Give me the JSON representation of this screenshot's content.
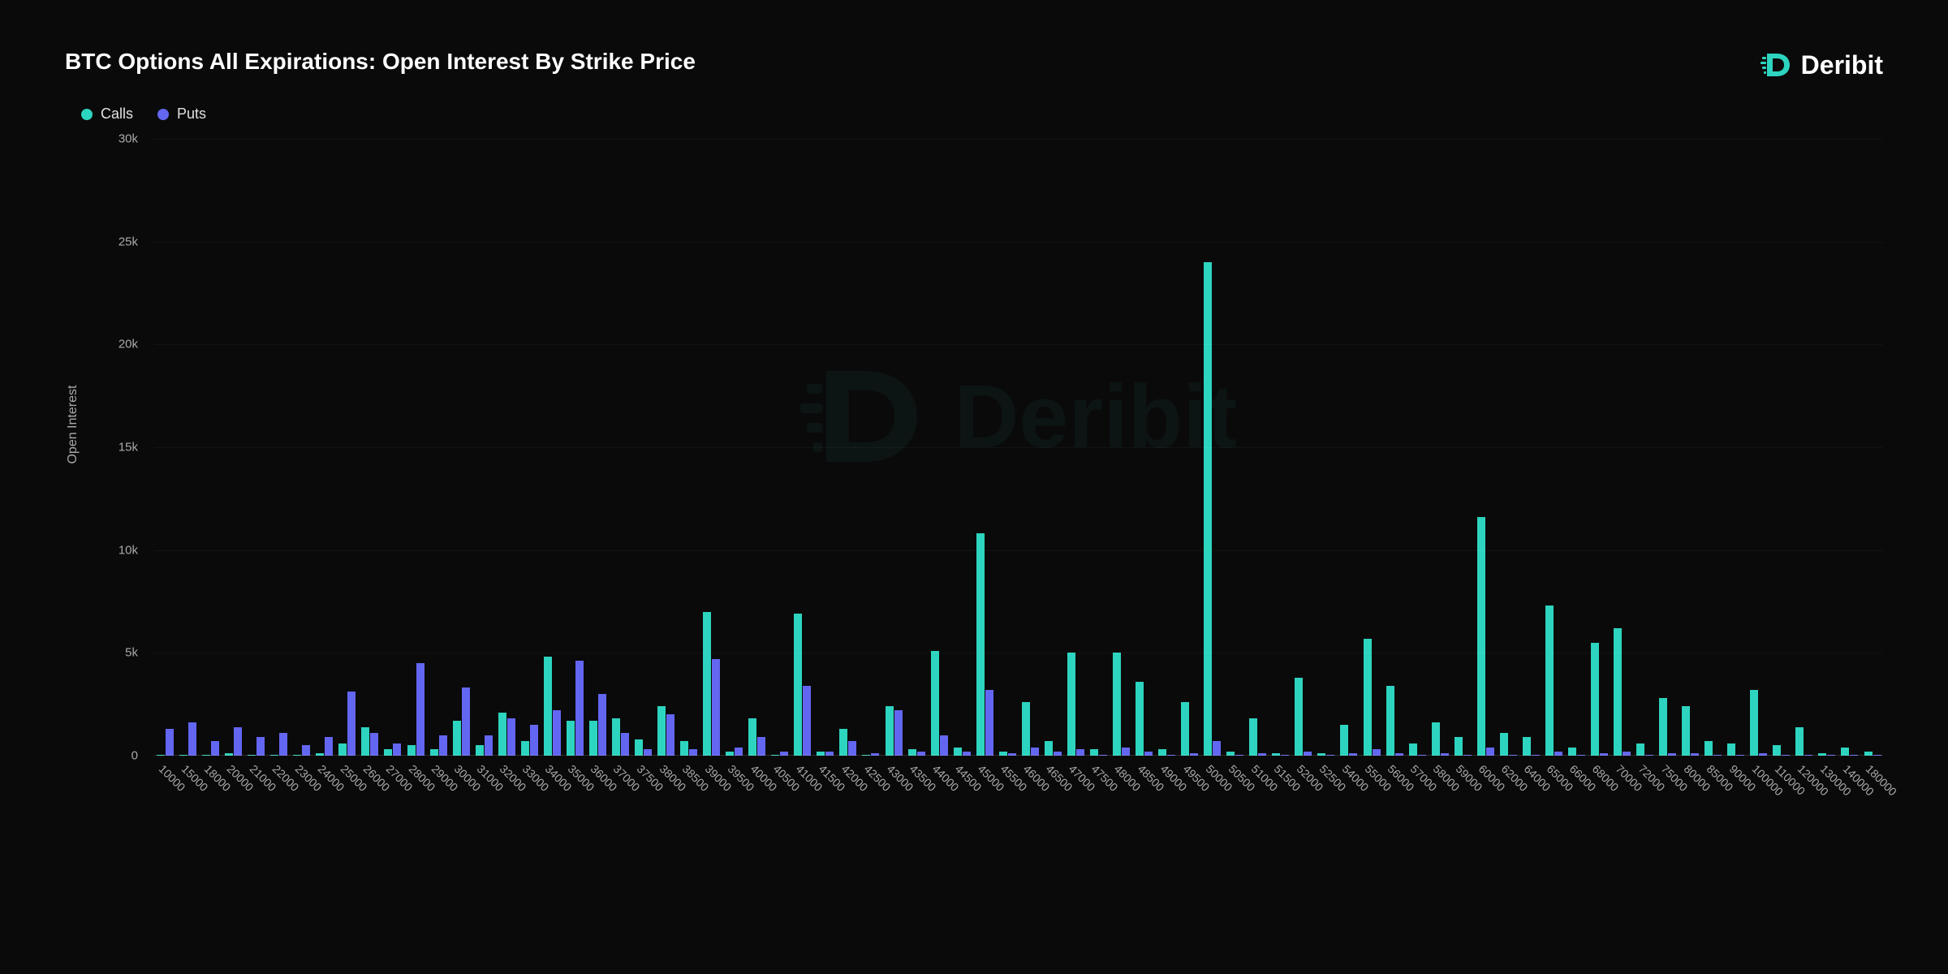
{
  "title": "BTC Options All Expirations: Open Interest By Strike Price",
  "brand": "Deribit",
  "legend": {
    "calls": {
      "label": "Calls",
      "color": "#2dd4bf"
    },
    "puts": {
      "label": "Puts",
      "color": "#6366f1"
    }
  },
  "chart": {
    "type": "grouped-bar",
    "background_color": "#0a0a0a",
    "grid_color": "rgba(255,255,255,0.04)",
    "text_color": "#aaaaaa",
    "ylabel": "Open Interest",
    "ylim": [
      0,
      30000
    ],
    "ytick_step": 5000,
    "yticks": [
      {
        "v": 0,
        "label": "0"
      },
      {
        "v": 5000,
        "label": "5k"
      },
      {
        "v": 10000,
        "label": "10k"
      },
      {
        "v": 15000,
        "label": "15k"
      },
      {
        "v": 20000,
        "label": "20k"
      },
      {
        "v": 25000,
        "label": "25k"
      },
      {
        "v": 30000,
        "label": "30k"
      }
    ],
    "series_colors": {
      "calls": "#2dd4bf",
      "puts": "#6366f1"
    },
    "bar_width_pct": 45,
    "title_fontsize": 28,
    "label_fontsize": 16,
    "tick_fontsize": 15,
    "data": [
      {
        "strike": "10000",
        "calls": 50,
        "puts": 1300,
        "show": true
      },
      {
        "strike": "15000",
        "calls": 50,
        "puts": 1600,
        "show": true
      },
      {
        "strike": "18000",
        "calls": 50,
        "puts": 700,
        "show": true
      },
      {
        "strike": "20000",
        "calls": 100,
        "puts": 1400,
        "show": true
      },
      {
        "strike": "21000",
        "calls": 50,
        "puts": 900,
        "show": false
      },
      {
        "strike": "22000",
        "calls": 50,
        "puts": 1100,
        "show": true
      },
      {
        "strike": "23000",
        "calls": 50,
        "puts": 500,
        "show": false
      },
      {
        "strike": "24000",
        "calls": 100,
        "puts": 900,
        "show": true
      },
      {
        "strike": "25000",
        "calls": 600,
        "puts": 3100,
        "show": false
      },
      {
        "strike": "26000",
        "calls": 1400,
        "puts": 1100,
        "show": true
      },
      {
        "strike": "27000",
        "calls": 300,
        "puts": 600,
        "show": false
      },
      {
        "strike": "28000",
        "calls": 500,
        "puts": 4500,
        "show": true
      },
      {
        "strike": "29000",
        "calls": 300,
        "puts": 1000,
        "show": false
      },
      {
        "strike": "30000",
        "calls": 1700,
        "puts": 3300,
        "show": true
      },
      {
        "strike": "31000",
        "calls": 500,
        "puts": 1000,
        "show": false
      },
      {
        "strike": "32000",
        "calls": 2100,
        "puts": 1800,
        "show": true
      },
      {
        "strike": "33000",
        "calls": 700,
        "puts": 1500,
        "show": false
      },
      {
        "strike": "34000",
        "calls": 4800,
        "puts": 2200,
        "show": true
      },
      {
        "strike": "35000",
        "calls": 1700,
        "puts": 4600,
        "show": false
      },
      {
        "strike": "36000",
        "calls": 1700,
        "puts": 3000,
        "show": true
      },
      {
        "strike": "37000",
        "calls": 1800,
        "puts": 1100,
        "show": false
      },
      {
        "strike": "37500",
        "calls": 800,
        "puts": 300,
        "show": true
      },
      {
        "strike": "38000",
        "calls": 2400,
        "puts": 2000,
        "show": false
      },
      {
        "strike": "38500",
        "calls": 700,
        "puts": 300,
        "show": true
      },
      {
        "strike": "39000",
        "calls": 7000,
        "puts": 4700,
        "show": false
      },
      {
        "strike": "39500",
        "calls": 200,
        "puts": 400,
        "show": true
      },
      {
        "strike": "40000",
        "calls": 1800,
        "puts": 900,
        "show": false
      },
      {
        "strike": "40500",
        "calls": 50,
        "puts": 200,
        "show": true
      },
      {
        "strike": "41000",
        "calls": 6900,
        "puts": 3400,
        "show": false
      },
      {
        "strike": "41500",
        "calls": 200,
        "puts": 200,
        "show": true
      },
      {
        "strike": "42000",
        "calls": 1300,
        "puts": 700,
        "show": false
      },
      {
        "strike": "42500",
        "calls": 50,
        "puts": 100,
        "show": true
      },
      {
        "strike": "43000",
        "calls": 2400,
        "puts": 2200,
        "show": false
      },
      {
        "strike": "43500",
        "calls": 300,
        "puts": 200,
        "show": true
      },
      {
        "strike": "44000",
        "calls": 5100,
        "puts": 1000,
        "show": false
      },
      {
        "strike": "44500",
        "calls": 400,
        "puts": 200,
        "show": true
      },
      {
        "strike": "45000",
        "calls": 10800,
        "puts": 3200,
        "show": false
      },
      {
        "strike": "45500",
        "calls": 200,
        "puts": 100,
        "show": true
      },
      {
        "strike": "46000",
        "calls": 2600,
        "puts": 400,
        "show": false
      },
      {
        "strike": "46500",
        "calls": 700,
        "puts": 200,
        "show": true
      },
      {
        "strike": "47000",
        "calls": 5000,
        "puts": 300,
        "show": false
      },
      {
        "strike": "47500",
        "calls": 300,
        "puts": 50,
        "show": true
      },
      {
        "strike": "48000",
        "calls": 5000,
        "puts": 400,
        "show": false
      },
      {
        "strike": "48500",
        "calls": 3600,
        "puts": 200,
        "show": true
      },
      {
        "strike": "49000",
        "calls": 300,
        "puts": 50,
        "show": false
      },
      {
        "strike": "49500",
        "calls": 2600,
        "puts": 100,
        "show": true
      },
      {
        "strike": "50000",
        "calls": 24000,
        "puts": 700,
        "show": false
      },
      {
        "strike": "50500",
        "calls": 200,
        "puts": 50,
        "show": true
      },
      {
        "strike": "51000",
        "calls": 1800,
        "puts": 100,
        "show": false
      },
      {
        "strike": "51500",
        "calls": 100,
        "puts": 50,
        "show": true
      },
      {
        "strike": "52000",
        "calls": 3800,
        "puts": 200,
        "show": false
      },
      {
        "strike": "52500",
        "calls": 100,
        "puts": 50,
        "show": true
      },
      {
        "strike": "54000",
        "calls": 1500,
        "puts": 100,
        "show": false
      },
      {
        "strike": "55000",
        "calls": 5700,
        "puts": 300,
        "show": true
      },
      {
        "strike": "56000",
        "calls": 3400,
        "puts": 100,
        "show": false
      },
      {
        "strike": "57000",
        "calls": 600,
        "puts": 50,
        "show": true
      },
      {
        "strike": "58000",
        "calls": 1600,
        "puts": 100,
        "show": false
      },
      {
        "strike": "59000",
        "calls": 900,
        "puts": 50,
        "show": true
      },
      {
        "strike": "60000",
        "calls": 11600,
        "puts": 400,
        "show": false
      },
      {
        "strike": "62000",
        "calls": 1100,
        "puts": 50,
        "show": true
      },
      {
        "strike": "64000",
        "calls": 900,
        "puts": 50,
        "show": false
      },
      {
        "strike": "65000",
        "calls": 7300,
        "puts": 200,
        "show": true
      },
      {
        "strike": "66000",
        "calls": 400,
        "puts": 50,
        "show": false
      },
      {
        "strike": "68000",
        "calls": 5500,
        "puts": 100,
        "show": true
      },
      {
        "strike": "70000",
        "calls": 6200,
        "puts": 200,
        "show": false
      },
      {
        "strike": "72000",
        "calls": 600,
        "puts": 50,
        "show": true
      },
      {
        "strike": "75000",
        "calls": 2800,
        "puts": 100,
        "show": false
      },
      {
        "strike": "80000",
        "calls": 2400,
        "puts": 100,
        "show": true
      },
      {
        "strike": "85000",
        "calls": 700,
        "puts": 50,
        "show": false
      },
      {
        "strike": "90000",
        "calls": 600,
        "puts": 50,
        "show": true
      },
      {
        "strike": "100000",
        "calls": 3200,
        "puts": 100,
        "show": false
      },
      {
        "strike": "110000",
        "calls": 500,
        "puts": 50,
        "show": true
      },
      {
        "strike": "120000",
        "calls": 1400,
        "puts": 50,
        "show": false
      },
      {
        "strike": "130000",
        "calls": 100,
        "puts": 50,
        "show": true
      },
      {
        "strike": "140000",
        "calls": 400,
        "puts": 50,
        "show": false
      },
      {
        "strike": "180000",
        "calls": 200,
        "puts": 50,
        "show": true
      }
    ]
  },
  "watermark": {
    "text": "Deribit",
    "color": "#1a4d4d",
    "opacity": 0.15,
    "fontsize": 110
  }
}
